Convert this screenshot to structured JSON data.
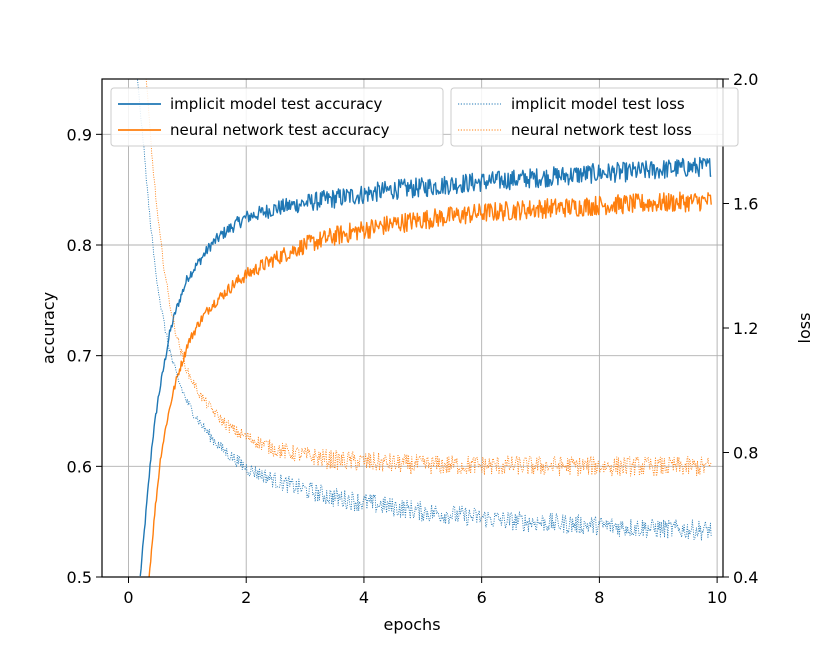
{
  "chart_data": {
    "type": "line",
    "title": "",
    "xlabel": "epochs",
    "ylabel": "accuracy",
    "y2label": "loss",
    "xlim": [
      -0.45,
      10.1
    ],
    "ylim": [
      0.5,
      0.95
    ],
    "y2lim": [
      0.4,
      2.0
    ],
    "grid": true,
    "x_ticks": [
      0,
      2,
      4,
      6,
      8,
      10
    ],
    "x_tick_labels": [
      "0",
      "2",
      "4",
      "6",
      "8",
      "10"
    ],
    "y_ticks": [
      0.5,
      0.6,
      0.7,
      0.8,
      0.9
    ],
    "y_tick_labels": [
      "0.5",
      "0.6",
      "0.7",
      "0.8",
      "0.9"
    ],
    "y2_ticks": [
      0.4,
      0.8,
      1.2,
      1.6,
      2.0
    ],
    "y2_tick_labels": [
      "0.4",
      "0.8",
      "1.2",
      "1.6",
      "2.0"
    ],
    "legend_left_position": "top-left",
    "legend_right_position": "top-right",
    "series": [
      {
        "name": "implicit model test accuracy",
        "axis": "left",
        "style": "solid",
        "color": "#1f77b4",
        "x": [
          0.2,
          0.3,
          0.4,
          0.5,
          0.6,
          0.7,
          0.8,
          0.9,
          1.0,
          1.2,
          1.4,
          1.6,
          1.8,
          2.0,
          2.5,
          3.0,
          3.5,
          4.0,
          4.5,
          5.0,
          5.5,
          6.0,
          6.5,
          7.0,
          7.5,
          8.0,
          8.5,
          9.0,
          9.5,
          9.9
        ],
        "values": [
          0.5,
          0.56,
          0.62,
          0.66,
          0.69,
          0.72,
          0.74,
          0.755,
          0.77,
          0.785,
          0.8,
          0.81,
          0.818,
          0.825,
          0.833,
          0.838,
          0.842,
          0.846,
          0.85,
          0.852,
          0.855,
          0.857,
          0.859,
          0.861,
          0.863,
          0.865,
          0.866,
          0.868,
          0.87,
          0.871
        ]
      },
      {
        "name": "neural network test accuracy",
        "axis": "left",
        "style": "solid",
        "color": "#ff7f0e",
        "x": [
          0.35,
          0.45,
          0.55,
          0.65,
          0.75,
          0.85,
          0.95,
          1.0,
          1.2,
          1.4,
          1.6,
          1.8,
          2.0,
          2.5,
          3.0,
          3.5,
          4.0,
          4.5,
          5.0,
          5.5,
          6.0,
          6.5,
          7.0,
          7.5,
          8.0,
          8.5,
          9.0,
          9.5,
          9.9
        ],
        "values": [
          0.5,
          0.56,
          0.61,
          0.64,
          0.665,
          0.685,
          0.7,
          0.71,
          0.73,
          0.745,
          0.755,
          0.765,
          0.773,
          0.788,
          0.8,
          0.808,
          0.814,
          0.819,
          0.823,
          0.826,
          0.829,
          0.831,
          0.833,
          0.834,
          0.836,
          0.837,
          0.838,
          0.839,
          0.84
        ]
      },
      {
        "name": "implicit model test loss",
        "axis": "right",
        "style": "dotted",
        "color": "#1f77b4",
        "x": [
          0.15,
          0.25,
          0.35,
          0.45,
          0.55,
          0.65,
          0.75,
          0.85,
          1.0,
          1.2,
          1.4,
          1.6,
          1.8,
          2.0,
          2.5,
          3.0,
          3.5,
          4.0,
          4.5,
          5.0,
          5.5,
          6.0,
          6.5,
          7.0,
          7.5,
          8.0,
          8.5,
          9.0,
          9.5,
          9.9
        ],
        "values": [
          2.0,
          1.8,
          1.58,
          1.4,
          1.27,
          1.17,
          1.09,
          1.03,
          0.96,
          0.9,
          0.85,
          0.81,
          0.78,
          0.75,
          0.71,
          0.68,
          0.655,
          0.64,
          0.625,
          0.61,
          0.6,
          0.59,
          0.58,
          0.575,
          0.57,
          0.565,
          0.56,
          0.555,
          0.552,
          0.55
        ]
      },
      {
        "name": "neural network test loss",
        "axis": "right",
        "style": "dotted",
        "color": "#ff7f0e",
        "x": [
          0.3,
          0.4,
          0.5,
          0.6,
          0.7,
          0.8,
          0.9,
          1.0,
          1.2,
          1.4,
          1.6,
          1.8,
          2.0,
          2.5,
          3.0,
          3.5,
          4.0,
          4.5,
          5.0,
          5.5,
          6.0,
          6.5,
          7.0,
          7.5,
          8.0,
          8.5,
          9.0,
          9.5,
          9.9
        ],
        "values": [
          2.0,
          1.75,
          1.55,
          1.4,
          1.28,
          1.19,
          1.12,
          1.06,
          0.99,
          0.94,
          0.9,
          0.87,
          0.85,
          0.81,
          0.79,
          0.775,
          0.77,
          0.765,
          0.76,
          0.76,
          0.758,
          0.758,
          0.757,
          0.757,
          0.756,
          0.756,
          0.755,
          0.755,
          0.755
        ]
      }
    ]
  }
}
